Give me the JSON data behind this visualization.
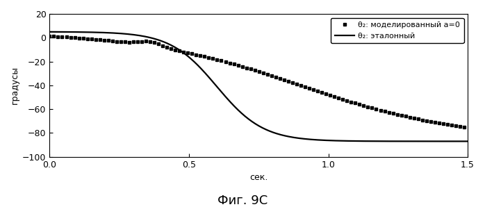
{
  "title": "Фиг. 9С",
  "xlabel": "сек.",
  "ylabel": "градусы",
  "xlim": [
    0,
    1.5
  ],
  "ylim": [
    -100,
    20
  ],
  "yticks": [
    -100,
    -80,
    -60,
    -40,
    -20,
    0,
    20
  ],
  "xticks": [
    0,
    0.5,
    1.0,
    1.5
  ],
  "legend_dotted": "θ₂: моделированный a=0",
  "legend_solid": "θ₂: эталонный",
  "bg_color": "#ffffff",
  "line_color": "#000000"
}
